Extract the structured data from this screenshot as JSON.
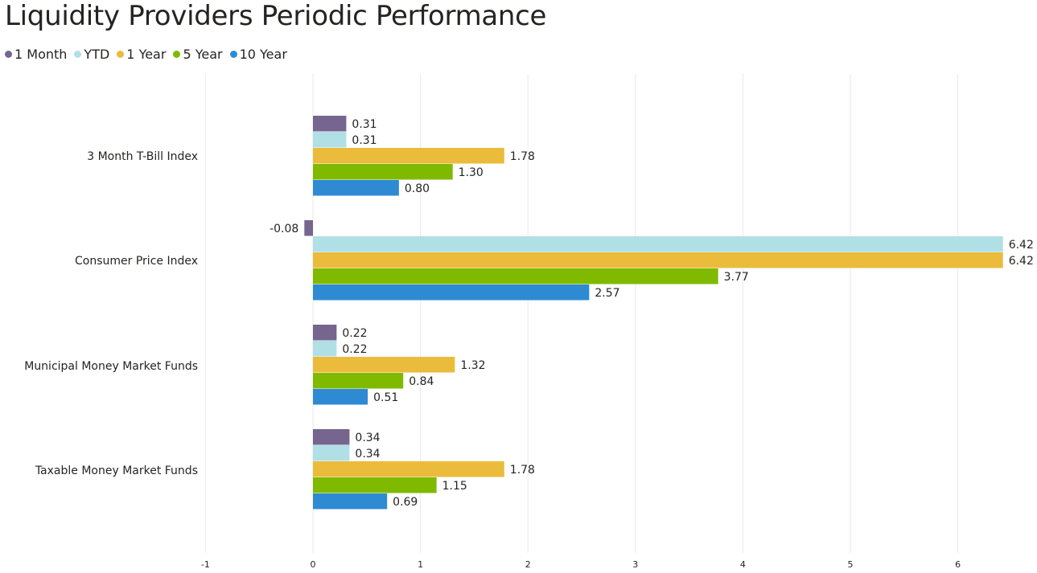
{
  "colors": {
    "1 Month": "#76658f",
    "YTD": "#b1dfe6",
    "1 Year": "#ebbb3c",
    "5 Year": "#7fba00",
    "10 Year": "#2f8ad4"
  },
  "chart_data": {
    "type": "bar",
    "orientation": "horizontal",
    "title": "Liquidity Providers Periodic Performance",
    "categories": [
      "3 Month T-Bill Index",
      "Consumer Price Index",
      "Municipal Money Market Funds",
      "Taxable Money Market Funds"
    ],
    "series": [
      {
        "name": "1 Month",
        "values": [
          0.31,
          -0.08,
          0.22,
          0.34
        ],
        "labels": [
          "0.31",
          "-0.08",
          "0.22",
          "0.34"
        ]
      },
      {
        "name": "YTD",
        "values": [
          0.31,
          6.42,
          0.22,
          0.34
        ],
        "labels": [
          "0.31",
          "6.42",
          "0.22",
          "0.34"
        ]
      },
      {
        "name": "1 Year",
        "values": [
          1.78,
          6.42,
          1.32,
          1.78
        ],
        "labels": [
          "1.78",
          "6.42",
          "1.32",
          "1.78"
        ]
      },
      {
        "name": "5 Year",
        "values": [
          1.3,
          3.77,
          0.84,
          1.15
        ],
        "labels": [
          "1.30",
          "3.77",
          "0.84",
          "1.15"
        ]
      },
      {
        "name": "10 Year",
        "values": [
          0.8,
          2.57,
          0.51,
          0.69
        ],
        "labels": [
          "0.80",
          "2.57",
          "0.51",
          "0.69"
        ]
      }
    ],
    "xlim": [
      -1,
      6.7
    ],
    "xticks": [
      -1,
      0,
      1,
      2,
      3,
      4,
      5,
      6
    ],
    "xtick_labels": [
      "-1",
      "0",
      "1",
      "2",
      "3",
      "4",
      "5",
      "6"
    ],
    "grid": true,
    "legend_position": "top-left",
    "xlabel": "",
    "ylabel": ""
  }
}
